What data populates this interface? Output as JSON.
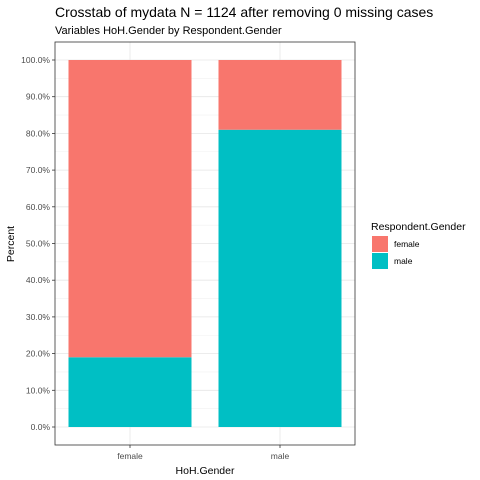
{
  "chart_data": {
    "type": "bar",
    "stacked": true,
    "title": "Crosstab of mydata N = 1124 after removing 0 missing cases",
    "subtitle": "Variables HoH.Gender by Respondent.Gender",
    "xlabel": "HoH.Gender",
    "ylabel": "Percent",
    "categories": [
      "female",
      "male"
    ],
    "series": [
      {
        "name": "female",
        "color": "#F8766D",
        "values": [
          81.0,
          19.0
        ]
      },
      {
        "name": "male",
        "color": "#00BFC4",
        "values": [
          19.0,
          81.0
        ]
      }
    ],
    "ylim": [
      0,
      100
    ],
    "yticks": [
      0,
      10,
      20,
      30,
      40,
      50,
      60,
      70,
      80,
      90,
      100
    ],
    "ytick_labels": [
      "0.0%",
      "10.0%",
      "20.0%",
      "30.0%",
      "40.0%",
      "50.0%",
      "60.0%",
      "70.0%",
      "80.0%",
      "90.0%",
      "100.0%"
    ],
    "grid": true,
    "legend": {
      "title": "Respondent.Gender",
      "position": "right"
    }
  }
}
